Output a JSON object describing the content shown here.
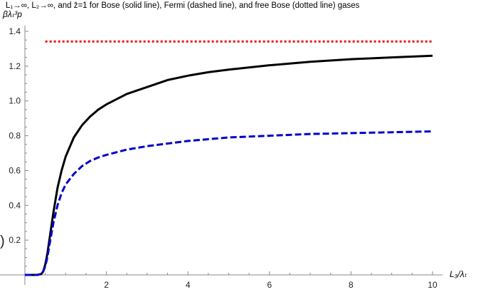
{
  "chart_data": {
    "type": "line",
    "title": "L₁→∞, L₂→∞, and z̄=1 for Bose (solid line), Fermi (dashed line), and free Bose (dotted line) gases",
    "ylabel": "βλₜ³p",
    "xlabel": "L₃/λₜ",
    "edge_mark": ")",
    "xlim": [
      0,
      10
    ],
    "ylim": [
      0,
      1.4
    ],
    "x_ticks": [
      2,
      4,
      6,
      8,
      10
    ],
    "y_ticks": [
      0.2,
      0.4,
      0.6,
      0.8,
      1.0,
      1.2,
      1.4
    ],
    "x_tick_labels": [
      "2",
      "4",
      "6",
      "8",
      "10"
    ],
    "y_tick_labels": [
      "0.2",
      "0.4",
      "0.6",
      "0.8",
      "1.0",
      "1.2",
      "1.4"
    ],
    "grid": false,
    "series": [
      {
        "style": "solid",
        "color": "#000000",
        "x": [
          0,
          0.3,
          0.4,
          0.45,
          0.5,
          0.55,
          0.6,
          0.7,
          0.8,
          0.9,
          1.0,
          1.2,
          1.4,
          1.6,
          1.8,
          2.0,
          2.5,
          3.0,
          3.5,
          4.0,
          4.5,
          5.0,
          6.0,
          7.0,
          8.0,
          9.0,
          10.0
        ],
        "values": [
          0,
          0,
          0.005,
          0.02,
          0.06,
          0.12,
          0.2,
          0.36,
          0.5,
          0.6,
          0.68,
          0.79,
          0.86,
          0.91,
          0.95,
          0.98,
          1.04,
          1.08,
          1.12,
          1.145,
          1.165,
          1.18,
          1.205,
          1.225,
          1.24,
          1.25,
          1.26
        ]
      },
      {
        "style": "dashed",
        "color": "#0000cc",
        "x": [
          0,
          0.3,
          0.4,
          0.45,
          0.5,
          0.55,
          0.6,
          0.7,
          0.8,
          0.9,
          1.0,
          1.2,
          1.4,
          1.6,
          1.8,
          2.0,
          2.5,
          3.0,
          3.5,
          4.0,
          4.5,
          5.0,
          6.0,
          7.0,
          8.0,
          9.0,
          10.0
        ],
        "values": [
          0,
          0,
          0.005,
          0.02,
          0.05,
          0.1,
          0.17,
          0.3,
          0.4,
          0.47,
          0.52,
          0.58,
          0.625,
          0.655,
          0.675,
          0.69,
          0.72,
          0.74,
          0.755,
          0.77,
          0.78,
          0.79,
          0.8,
          0.81,
          0.815,
          0.82,
          0.825
        ]
      },
      {
        "style": "dotted",
        "color": "#ee1111",
        "x": [
          0.5,
          10.0
        ],
        "values": [
          1.3415,
          1.3415
        ]
      }
    ]
  }
}
